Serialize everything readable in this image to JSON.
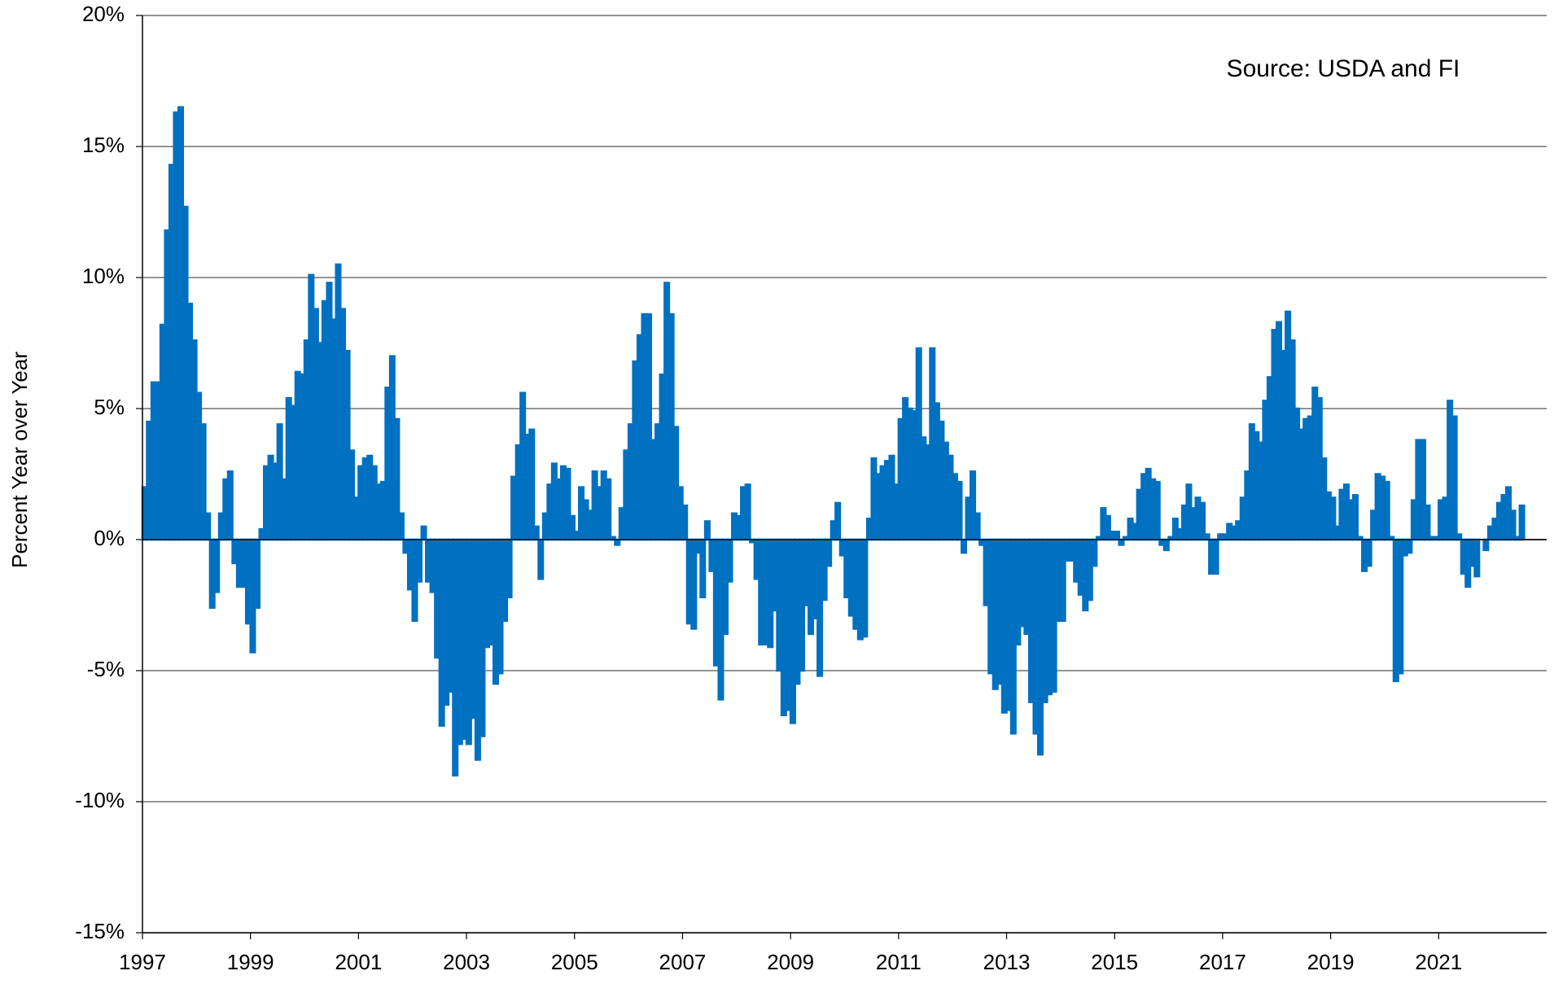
{
  "chart_data": {
    "type": "bar",
    "annotation": "Source: USDA and FI",
    "y_label": "Percent Year over Year",
    "color": "#0070c0",
    "grid": true,
    "xlim": [
      1997,
      2023
    ],
    "xticks": [
      1997,
      1999,
      2001,
      2003,
      2005,
      2007,
      2009,
      2011,
      2013,
      2015,
      2017,
      2019,
      2021
    ],
    "ylim": [
      -15,
      20
    ],
    "yticks": [
      {
        "value": -15,
        "label": "-15%"
      },
      {
        "value": -10,
        "label": "-10%"
      },
      {
        "value": -5,
        "label": "-5%"
      },
      {
        "value": 0,
        "label": "0%"
      },
      {
        "value": 5,
        "label": "5%"
      },
      {
        "value": 10,
        "label": "10%"
      },
      {
        "value": 15,
        "label": "15%"
      },
      {
        "value": 20,
        "label": "20%"
      }
    ],
    "x": [
      1997,
      1997.083,
      1997.167,
      1997.25,
      1997.333,
      1997.417,
      1997.5,
      1997.583,
      1997.667,
      1997.75,
      1997.833,
      1997.917,
      1998,
      1998.083,
      1998.167,
      1998.25,
      1998.333,
      1998.417,
      1998.5,
      1998.583,
      1998.667,
      1998.75,
      1998.833,
      1998.917,
      1999,
      1999.083,
      1999.167,
      1999.25,
      1999.333,
      1999.417,
      1999.5,
      1999.583,
      1999.667,
      1999.75,
      1999.833,
      1999.917,
      2000,
      2000.083,
      2000.167,
      2000.25,
      2000.333,
      2000.417,
      2000.5,
      2000.583,
      2000.667,
      2000.75,
      2000.833,
      2000.917,
      2001,
      2001.083,
      2001.167,
      2001.25,
      2001.333,
      2001.417,
      2001.5,
      2001.583,
      2001.667,
      2001.75,
      2001.833,
      2001.917,
      2002,
      2002.083,
      2002.167,
      2002.25,
      2002.333,
      2002.417,
      2002.5,
      2002.583,
      2002.667,
      2002.75,
      2002.833,
      2002.917,
      2003,
      2003.083,
      2003.167,
      2003.25,
      2003.333,
      2003.417,
      2003.5,
      2003.583,
      2003.667,
      2003.75,
      2003.833,
      2003.917,
      2004,
      2004.083,
      2004.167,
      2004.25,
      2004.333,
      2004.417,
      2004.5,
      2004.583,
      2004.667,
      2004.75,
      2004.833,
      2004.917,
      2005,
      2005.083,
      2005.167,
      2005.25,
      2005.333,
      2005.417,
      2005.5,
      2005.583,
      2005.667,
      2005.75,
      2005.833,
      2005.917,
      2006,
      2006.083,
      2006.167,
      2006.25,
      2006.333,
      2006.417,
      2006.5,
      2006.583,
      2006.667,
      2006.75,
      2006.833,
      2006.917,
      2007,
      2007.083,
      2007.167,
      2007.25,
      2007.333,
      2007.417,
      2007.5,
      2007.583,
      2007.667,
      2007.75,
      2007.833,
      2007.917,
      2008,
      2008.083,
      2008.167,
      2008.25,
      2008.333,
      2008.417,
      2008.5,
      2008.583,
      2008.667,
      2008.75,
      2008.833,
      2008.917,
      2009,
      2009.083,
      2009.167,
      2009.25,
      2009.333,
      2009.417,
      2009.5,
      2009.583,
      2009.667,
      2009.75,
      2009.833,
      2009.917,
      2010,
      2010.083,
      2010.167,
      2010.25,
      2010.333,
      2010.417,
      2010.5,
      2010.583,
      2010.667,
      2010.75,
      2010.833,
      2010.917,
      2011,
      2011.083,
      2011.167,
      2011.25,
      2011.333,
      2011.417,
      2011.5,
      2011.583,
      2011.667,
      2011.75,
      2011.833,
      2011.917,
      2012,
      2012.083,
      2012.167,
      2012.25,
      2012.333,
      2012.417,
      2012.5,
      2012.583,
      2012.667,
      2012.75,
      2012.833,
      2012.917,
      2013,
      2013.083,
      2013.167,
      2013.25,
      2013.333,
      2013.417,
      2013.5,
      2013.583,
      2013.667,
      2013.75,
      2013.833,
      2013.917,
      2014,
      2014.083,
      2014.167,
      2014.25,
      2014.333,
      2014.417,
      2014.5,
      2014.583,
      2014.667,
      2014.75,
      2014.833,
      2014.917,
      2015,
      2015.083,
      2015.167,
      2015.25,
      2015.333,
      2015.417,
      2015.5,
      2015.583,
      2015.667,
      2015.75,
      2015.833,
      2015.917,
      2016,
      2016.083,
      2016.167,
      2016.25,
      2016.333,
      2016.417,
      2016.5,
      2016.583,
      2016.667,
      2016.75,
      2016.833,
      2016.917,
      2017,
      2017.083,
      2017.167,
      2017.25,
      2017.333,
      2017.417,
      2017.5,
      2017.583,
      2017.667,
      2017.75,
      2017.833,
      2017.917,
      2018,
      2018.083,
      2018.167,
      2018.25,
      2018.333,
      2018.417,
      2018.5,
      2018.583,
      2018.667,
      2018.75,
      2018.833,
      2018.917,
      2019,
      2019.083,
      2019.167,
      2019.25,
      2019.333,
      2019.417,
      2019.5,
      2019.583,
      2019.667,
      2019.75,
      2019.833,
      2019.917,
      2020,
      2020.083,
      2020.167,
      2020.25,
      2020.333,
      2020.417,
      2020.5,
      2020.583,
      2020.667,
      2020.75,
      2020.833,
      2020.917,
      2021,
      2021.083,
      2021.167,
      2021.25,
      2021.333,
      2021.417,
      2021.5,
      2021.583,
      2021.667,
      2021.75,
      2021.833,
      2021.917,
      2022,
      2022.083,
      2022.167,
      2022.25,
      2022.333,
      2022.417,
      2022.5
    ],
    "values": [
      2,
      4.5,
      6,
      6,
      8.2,
      11.8,
      14.3,
      16.3,
      16.5,
      12.7,
      9.0,
      7.6,
      5.6,
      4.4,
      1.0,
      -2.6,
      -2.0,
      1.0,
      2.3,
      2.6,
      -0.9,
      -1.8,
      -1.8,
      -3.2,
      -4.3,
      -2.6,
      0.4,
      2.8,
      3.2,
      2.9,
      4.4,
      2.3,
      5.4,
      5.1,
      6.4,
      6.3,
      7.6,
      10.1,
      8.8,
      7.5,
      9.1,
      9.8,
      8.4,
      10.5,
      8.8,
      7.2,
      3.4,
      1.6,
      2.8,
      3.1,
      3.2,
      2.8,
      2.1,
      2.2,
      5.8,
      7.0,
      4.6,
      1.0,
      -0.5,
      -1.9,
      -3.1,
      -1.6,
      0.5,
      -1.6,
      -2.0,
      -4.5,
      -7.1,
      -6.3,
      -5.8,
      -9.0,
      -7.8,
      -7.6,
      -7.8,
      -6.8,
      -8.4,
      -7.5,
      -4.1,
      -4.0,
      -5.5,
      -5.1,
      -3.1,
      -2.2,
      2.4,
      3.6,
      5.6,
      4.0,
      4.2,
      0.5,
      -1.5,
      1.0,
      2.1,
      2.9,
      2.3,
      2.8,
      2.7,
      0.9,
      0.3,
      2.0,
      1.5,
      1.1,
      2.6,
      2.0,
      2.6,
      2.3,
      0.1,
      -0.2,
      1.2,
      3.4,
      4.4,
      6.8,
      7.8,
      8.6,
      8.6,
      3.8,
      4.4,
      6.3,
      9.8,
      8.6,
      4.3,
      2.0,
      1.3,
      -3.2,
      -3.4,
      -0.5,
      -2.2,
      0.7,
      -1.2,
      -4.8,
      -6.1,
      -3.6,
      -1.6,
      1.0,
      0.9,
      2.0,
      2.1,
      -0.1,
      -1.5,
      -4.0,
      -4.0,
      -4.1,
      -2.7,
      -5.0,
      -6.7,
      -6.5,
      -7.0,
      -5.5,
      -5.0,
      -2.5,
      -3.6,
      -3.0,
      -5.2,
      -2.3,
      -1.0,
      0.7,
      1.4,
      -0.6,
      -2.2,
      -2.9,
      -3.4,
      -3.8,
      -3.7,
      0.8,
      3.1,
      2.5,
      2.8,
      3.0,
      3.2,
      2.1,
      4.6,
      5.4,
      5.0,
      4.9,
      7.3,
      3.9,
      3.6,
      7.3,
      5.2,
      4.5,
      3.7,
      3.2,
      2.5,
      2.2,
      -0.5,
      1.6,
      2.6,
      1.0,
      -0.2,
      -2.5,
      -5.1,
      -5.7,
      -5.5,
      -6.6,
      -6.5,
      -7.4,
      -4.0,
      -3.3,
      -3.6,
      -6.2,
      -7.4,
      -8.2,
      -6.2,
      -5.9,
      -5.8,
      -3.1,
      -3.1,
      -0.8,
      -0.8,
      -1.6,
      -2.1,
      -2.7,
      -2.3,
      -1.0,
      0.1,
      1.2,
      0.9,
      0.3,
      0.3,
      -0.2,
      0.1,
      0.8,
      0.6,
      1.9,
      2.5,
      2.7,
      2.3,
      2.2,
      -0.2,
      -0.4,
      0.1,
      0.8,
      0.4,
      1.3,
      2.1,
      1.2,
      1.6,
      1.4,
      0.2,
      -1.3,
      -1.3,
      0.2,
      0.2,
      0.6,
      0.5,
      0.7,
      1.6,
      2.6,
      4.4,
      4.1,
      3.7,
      5.3,
      6.2,
      8.0,
      8.3,
      7.2,
      8.7,
      7.6,
      5.0,
      4.2,
      4.6,
      4.7,
      5.8,
      5.4,
      3.1,
      1.8,
      1.6,
      0.5,
      1.9,
      2.1,
      1.5,
      1.7,
      0.1,
      -1.2,
      -1.0,
      1.1,
      2.5,
      2.4,
      2.2,
      0.1,
      -5.4,
      -5.1,
      -0.6,
      -0.5,
      1.5,
      3.8,
      3.8,
      1.3,
      0.1,
      0.1,
      1.5,
      1.6,
      5.3,
      4.7,
      0.2,
      -1.3,
      -1.8,
      -1.0,
      -1.4,
      0.0,
      -0.4,
      0.5,
      0.8,
      1.4,
      1.7,
      2.0,
      1.1,
      0.1,
      1.3
    ]
  }
}
